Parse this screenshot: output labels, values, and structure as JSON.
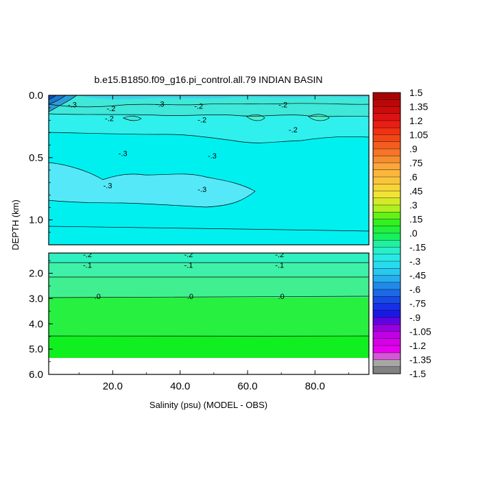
{
  "chart_data": {
    "type": "heatmap",
    "title": "b.e15.B1850.f09_g16.pi_control.all.79 INDIAN BASIN",
    "xlabel": "Salinity (psu) (MODEL - OBS)",
    "ylabel": "DEPTH (km)",
    "x_ticks": [
      "20.0",
      "40.0",
      "60.0",
      "80.0"
    ],
    "x_tick_values": [
      20,
      40,
      60,
      80
    ],
    "xlim": [
      1,
      96
    ],
    "upper_panel": {
      "ylim": [
        0,
        1.2
      ],
      "y_ticks": [
        "0.0",
        "0.5",
        "1.0"
      ],
      "y_tick_values": [
        0,
        0.5,
        1.0
      ]
    },
    "lower_panel": {
      "ylim": [
        1.2,
        6.0
      ],
      "y_ticks": [
        "2.0",
        "3.0",
        "4.0",
        "5.0",
        "6.0"
      ],
      "y_tick_values": [
        2,
        3,
        4,
        5,
        6
      ],
      "data_bottom": 5.35
    },
    "colorbar": {
      "min": -1.5,
      "max": 1.5,
      "step": 0.075,
      "labels": [
        "1.5",
        "1.35",
        "1.2",
        "1.05",
        ".9",
        ".75",
        ".6",
        ".45",
        ".3",
        ".15",
        ".0",
        "-.15",
        "-.3",
        "-.45",
        "-.6",
        "-.75",
        "-.9",
        "-1.05",
        "-1.2",
        "-1.35",
        "-1.5"
      ]
    },
    "contour_labels": {
      "upper": [
        {
          "text": "-.3",
          "x": 8,
          "y": 0.08
        },
        {
          "text": "-.3",
          "x": 34,
          "y": 0.075
        },
        {
          "text": "-.2",
          "x": 19.5,
          "y": 0.11
        },
        {
          "text": "-.2",
          "x": 45.5,
          "y": 0.09
        },
        {
          "text": "-.2",
          "x": 70.5,
          "y": 0.08
        },
        {
          "text": "-.2",
          "x": 19,
          "y": 0.19
        },
        {
          "text": "-.2",
          "x": 46.5,
          "y": 0.2
        },
        {
          "text": "-.2",
          "x": 73.5,
          "y": 0.28
        },
        {
          "text": "-.3",
          "x": 23,
          "y": 0.47
        },
        {
          "text": "-.3",
          "x": 49.5,
          "y": 0.49
        },
        {
          "text": "-.3",
          "x": 18.5,
          "y": 0.73
        },
        {
          "text": "-.3",
          "x": 46.5,
          "y": 0.76
        }
      ],
      "lower": [
        {
          "text": "-.2",
          "x": 12.5,
          "y": 1.28
        },
        {
          "text": "-.2",
          "x": 42.5,
          "y": 1.28
        },
        {
          "text": "-.2",
          "x": 69.5,
          "y": 1.28
        },
        {
          "text": "-.1",
          "x": 12.5,
          "y": 1.7
        },
        {
          "text": "-.1",
          "x": 42.5,
          "y": 1.7
        },
        {
          "text": "-.1",
          "x": 69.5,
          "y": 1.7
        },
        {
          "text": ".0",
          "x": 15.5,
          "y": 2.93
        },
        {
          "text": ".0",
          "x": 43,
          "y": 2.93
        },
        {
          "text": ".0",
          "x": 70,
          "y": 2.93
        }
      ]
    }
  }
}
